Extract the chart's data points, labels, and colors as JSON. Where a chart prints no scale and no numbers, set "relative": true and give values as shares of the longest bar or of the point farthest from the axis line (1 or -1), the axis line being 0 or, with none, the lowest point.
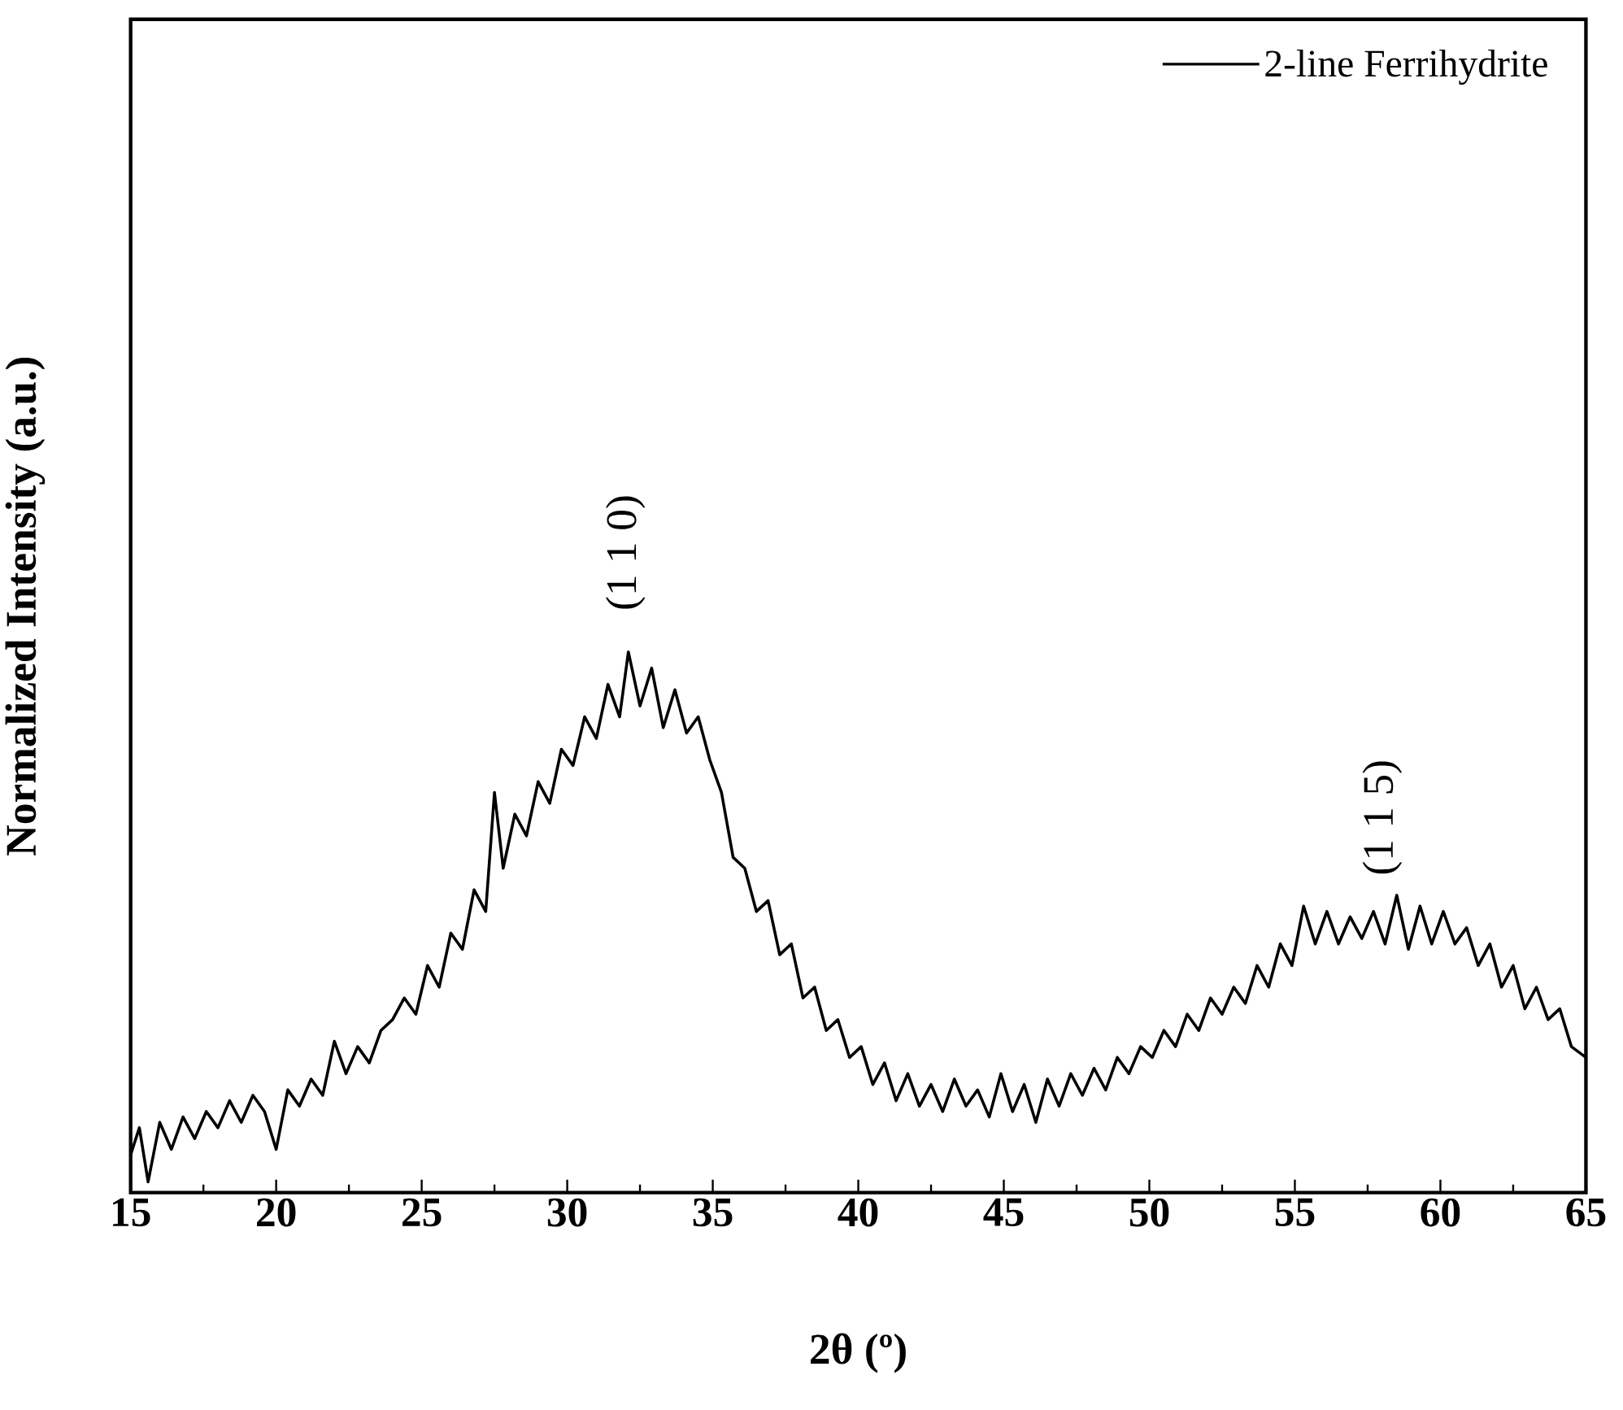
{
  "chart_data": {
    "type": "line",
    "relative": true,
    "xlabel": "2θ (º)",
    "ylabel": "Normalized Intensity (a.u.)",
    "xlim": [
      15,
      65
    ],
    "xticks": [
      15,
      20,
      25,
      30,
      35,
      40,
      45,
      50,
      55,
      60,
      65
    ],
    "legend": "top right",
    "marker": "none",
    "line_style": "solid",
    "annotations": [
      {
        "text": "(1 1 0)",
        "x": 32,
        "y": 1.0
      },
      {
        "text": "(1 1 5)",
        "x": 58,
        "y": 0.51
      }
    ],
    "series": [
      {
        "name": "2-line Ferrihydrite",
        "color": "#000000",
        "x": [
          15,
          15.3,
          15.6,
          16,
          16.4,
          16.8,
          17.2,
          17.6,
          18,
          18.4,
          18.8,
          19.2,
          19.6,
          20,
          20.4,
          20.8,
          21.2,
          21.6,
          22,
          22.4,
          22.8,
          23.2,
          23.6,
          24,
          24.4,
          24.8,
          25.2,
          25.6,
          26,
          26.4,
          26.8,
          27.2,
          27.5,
          27.8,
          28.2,
          28.6,
          29,
          29.4,
          29.8,
          30.2,
          30.6,
          31,
          31.4,
          31.8,
          32.1,
          32.5,
          32.9,
          33.3,
          33.7,
          34.1,
          34.5,
          34.9,
          35.3,
          35.7,
          36.1,
          36.5,
          36.9,
          37.3,
          37.7,
          38.1,
          38.5,
          38.9,
          39.3,
          39.7,
          40.1,
          40.5,
          40.9,
          41.3,
          41.7,
          42.1,
          42.5,
          42.9,
          43.3,
          43.7,
          44.1,
          44.5,
          44.9,
          45.3,
          45.7,
          46.1,
          46.5,
          46.9,
          47.3,
          47.7,
          48.1,
          48.5,
          48.9,
          49.3,
          49.7,
          50.1,
          50.5,
          50.9,
          51.3,
          51.7,
          52.1,
          52.5,
          52.9,
          53.3,
          53.7,
          54.1,
          54.5,
          54.9,
          55.3,
          55.7,
          56.1,
          56.5,
          56.9,
          57.3,
          57.7,
          58.1,
          58.5,
          58.9,
          59.3,
          59.7,
          60.1,
          60.5,
          60.9,
          61.3,
          61.7,
          62.1,
          62.5,
          62.9,
          63.3,
          63.7,
          64.1,
          64.5,
          65
        ],
        "values": [
          0.07,
          0.12,
          0.02,
          0.13,
          0.08,
          0.14,
          0.1,
          0.15,
          0.12,
          0.17,
          0.13,
          0.18,
          0.15,
          0.08,
          0.19,
          0.16,
          0.21,
          0.18,
          0.28,
          0.22,
          0.27,
          0.24,
          0.3,
          0.32,
          0.36,
          0.33,
          0.42,
          0.38,
          0.48,
          0.45,
          0.56,
          0.52,
          0.74,
          0.6,
          0.7,
          0.66,
          0.76,
          0.72,
          0.82,
          0.79,
          0.88,
          0.84,
          0.94,
          0.88,
          1.0,
          0.9,
          0.97,
          0.86,
          0.93,
          0.85,
          0.88,
          0.8,
          0.74,
          0.62,
          0.6,
          0.52,
          0.54,
          0.44,
          0.46,
          0.36,
          0.38,
          0.3,
          0.32,
          0.25,
          0.27,
          0.2,
          0.24,
          0.17,
          0.22,
          0.16,
          0.2,
          0.15,
          0.21,
          0.16,
          0.19,
          0.14,
          0.22,
          0.15,
          0.2,
          0.13,
          0.21,
          0.16,
          0.22,
          0.18,
          0.23,
          0.19,
          0.25,
          0.22,
          0.27,
          0.25,
          0.3,
          0.27,
          0.33,
          0.3,
          0.36,
          0.33,
          0.38,
          0.35,
          0.42,
          0.38,
          0.46,
          0.42,
          0.53,
          0.46,
          0.52,
          0.46,
          0.51,
          0.47,
          0.52,
          0.46,
          0.55,
          0.45,
          0.53,
          0.46,
          0.52,
          0.46,
          0.49,
          0.42,
          0.46,
          0.38,
          0.42,
          0.34,
          0.38,
          0.32,
          0.34,
          0.27,
          0.25
        ]
      }
    ]
  }
}
